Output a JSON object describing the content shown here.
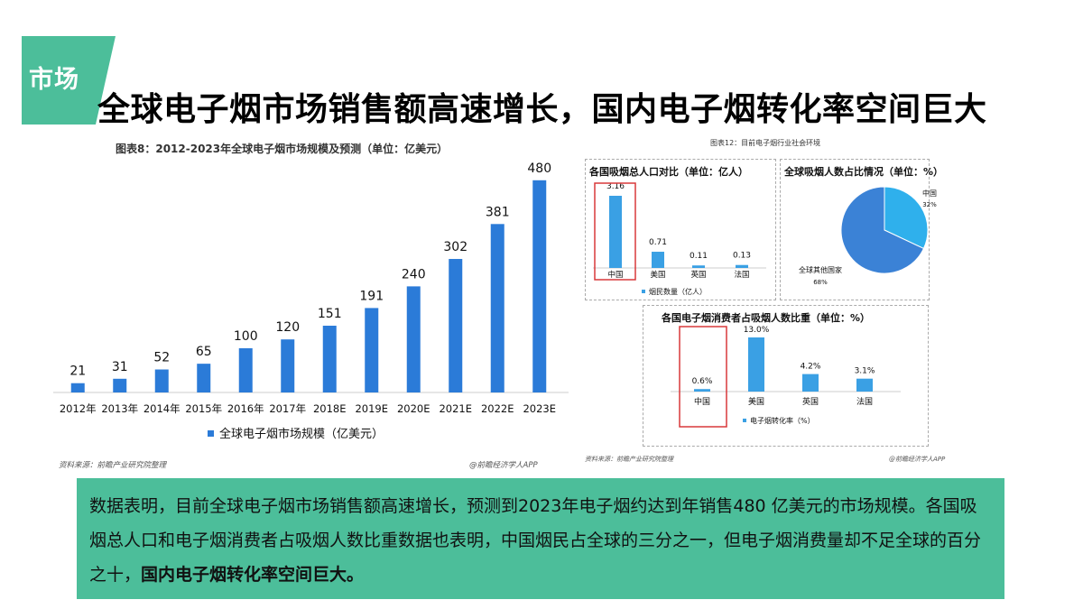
{
  "header": {
    "tag": "市场",
    "title": "全球电子烟市场销售额高速增长，国内电子烟转化率空间巨大"
  },
  "left_chart": {
    "caption": "图表8：2012-2023年全球电子烟市场规模及预测（单位：亿美元）",
    "source": "资料来源：前瞻产业研究院整理",
    "source_right": "@前瞻经济学人APP"
  },
  "right_charts": {
    "caption": "图表12：目前电子烟行业社会环境",
    "source": "资料来源：前瞻产业研究院整理",
    "source_right": "@前瞻经济学人APP"
  },
  "colors": {
    "bar": "#2b7bd8",
    "bar_light": "#3aa0e4",
    "accent_green": "#4cbe9a",
    "highlight": "#d9383a",
    "pie_main": "#3b82d6",
    "pie_cn": "#2fb0ec"
  },
  "chart_data": [
    {
      "type": "bar",
      "categories": [
        "2012年",
        "2013年",
        "2014年",
        "2015年",
        "2016年",
        "2017年",
        "2018E",
        "2019E",
        "2020E",
        "2021E",
        "2022E",
        "2023E"
      ],
      "series": [
        {
          "name": "全球电子烟市场规模（亿美元）",
          "values": [
            21,
            31,
            52,
            65,
            100,
            120,
            151,
            191,
            240,
            302,
            381,
            480
          ]
        }
      ],
      "ylim": [
        0,
        500
      ]
    },
    {
      "type": "bar",
      "title": "各国吸烟总人口对比（单位：亿人）",
      "categories": [
        "中国",
        "美国",
        "英国",
        "法国"
      ],
      "series": [
        {
          "name": "烟民数量（亿人）",
          "values": [
            3.16,
            0.71,
            0.11,
            0.13
          ]
        }
      ],
      "labels": [
        "3.16",
        "0.71",
        "0.11",
        "0.13"
      ]
    },
    {
      "type": "pie",
      "title": "全球吸烟人数占比情况（单位：%）",
      "slices": [
        {
          "label": "中国",
          "value": 32,
          "text": "32%"
        },
        {
          "label": "全球其他国家",
          "value": 68,
          "text": "68%"
        }
      ]
    },
    {
      "type": "bar",
      "title": "各国电子烟消费者占吸烟人数比重（单位：%）",
      "categories": [
        "中国",
        "美国",
        "英国",
        "法国"
      ],
      "series": [
        {
          "name": "电子烟转化率（%）",
          "values": [
            0.6,
            13.0,
            4.2,
            3.1
          ]
        }
      ],
      "labels": [
        "0.6%",
        "13.0%",
        "4.2%",
        "3.1%"
      ]
    }
  ],
  "description": {
    "text": "数据表明，目前全球电子烟市场销售额高速增长，预测到2023年电子烟约达到年销售480 亿美元的市场规模。各国吸烟总人口和电子烟消费者占吸烟人数比重数据也表明，中国烟民占全球的三分之一，但电子烟消费量却不足全球的百分之十，",
    "bold": "国内电子烟转化率空间巨大。"
  }
}
